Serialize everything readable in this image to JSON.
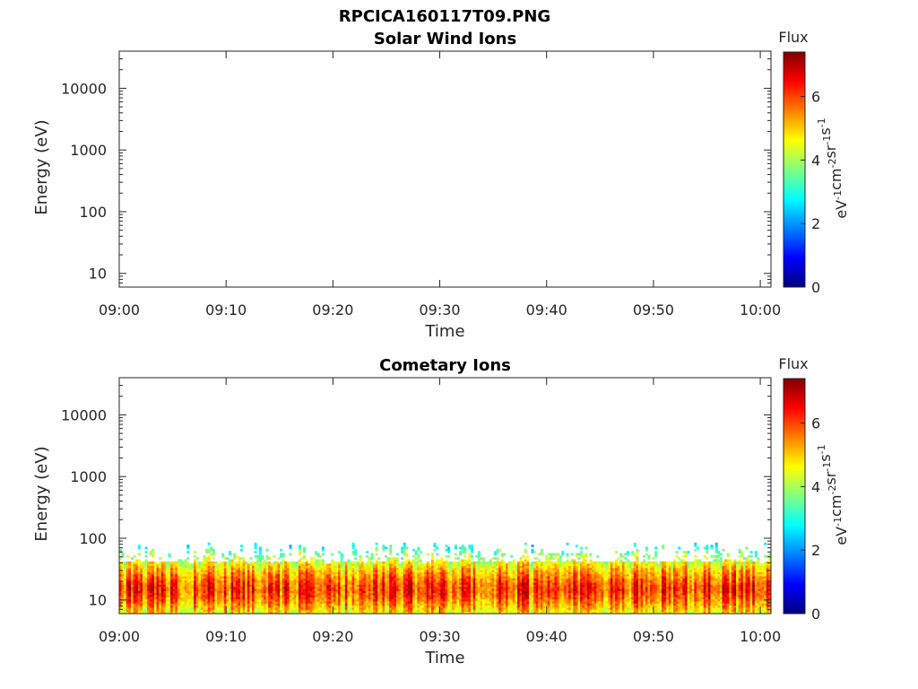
{
  "figure": {
    "title": "RPCICA160117T09.PNG"
  },
  "chart_data": [
    {
      "type": "heatmap",
      "title": "Solar Wind Ions",
      "xlabel": "Time",
      "ylabel": "Energy (eV)",
      "x_ticks": [
        "09:00",
        "09:10",
        "09:20",
        "09:30",
        "09:40",
        "09:50",
        "10:00"
      ],
      "xlim": [
        "09:00",
        "10:01"
      ],
      "y_scale": "log",
      "y_ticks": [
        "10",
        "100",
        "1000",
        "10000"
      ],
      "ylim": [
        6,
        40000
      ],
      "colorbar": {
        "title": "Flux",
        "ticks": [
          "0",
          "2",
          "4",
          "6"
        ],
        "range": [
          0,
          7.4
        ]
      },
      "data_present": false
    },
    {
      "type": "heatmap",
      "title": "Cometary Ions",
      "xlabel": "Time",
      "ylabel": "Energy (eV)",
      "x_ticks": [
        "09:00",
        "09:10",
        "09:20",
        "09:30",
        "09:40",
        "09:50",
        "10:00"
      ],
      "xlim": [
        "09:00",
        "10:01"
      ],
      "y_scale": "log",
      "y_ticks": [
        "10",
        "100",
        "1000",
        "10000"
      ],
      "ylim": [
        6,
        40000
      ],
      "colorbar": {
        "title": "Flux",
        "ticks": [
          "0",
          "2",
          "4",
          "6"
        ],
        "range": [
          0,
          7.4
        ]
      },
      "data_present": true,
      "band": {
        "energy_min_eV": 6,
        "energy_max_eV": 85,
        "peak_energy_eV": 15,
        "peak_flux": 6.5,
        "typical_flux_core": 6,
        "typical_flux_edge": 3
      }
    }
  ],
  "colors": {
    "cmap": [
      "#000080",
      "#0000ff",
      "#0080ff",
      "#00ffff",
      "#80ff80",
      "#ffff00",
      "#ff8000",
      "#ff0000",
      "#800000"
    ]
  }
}
